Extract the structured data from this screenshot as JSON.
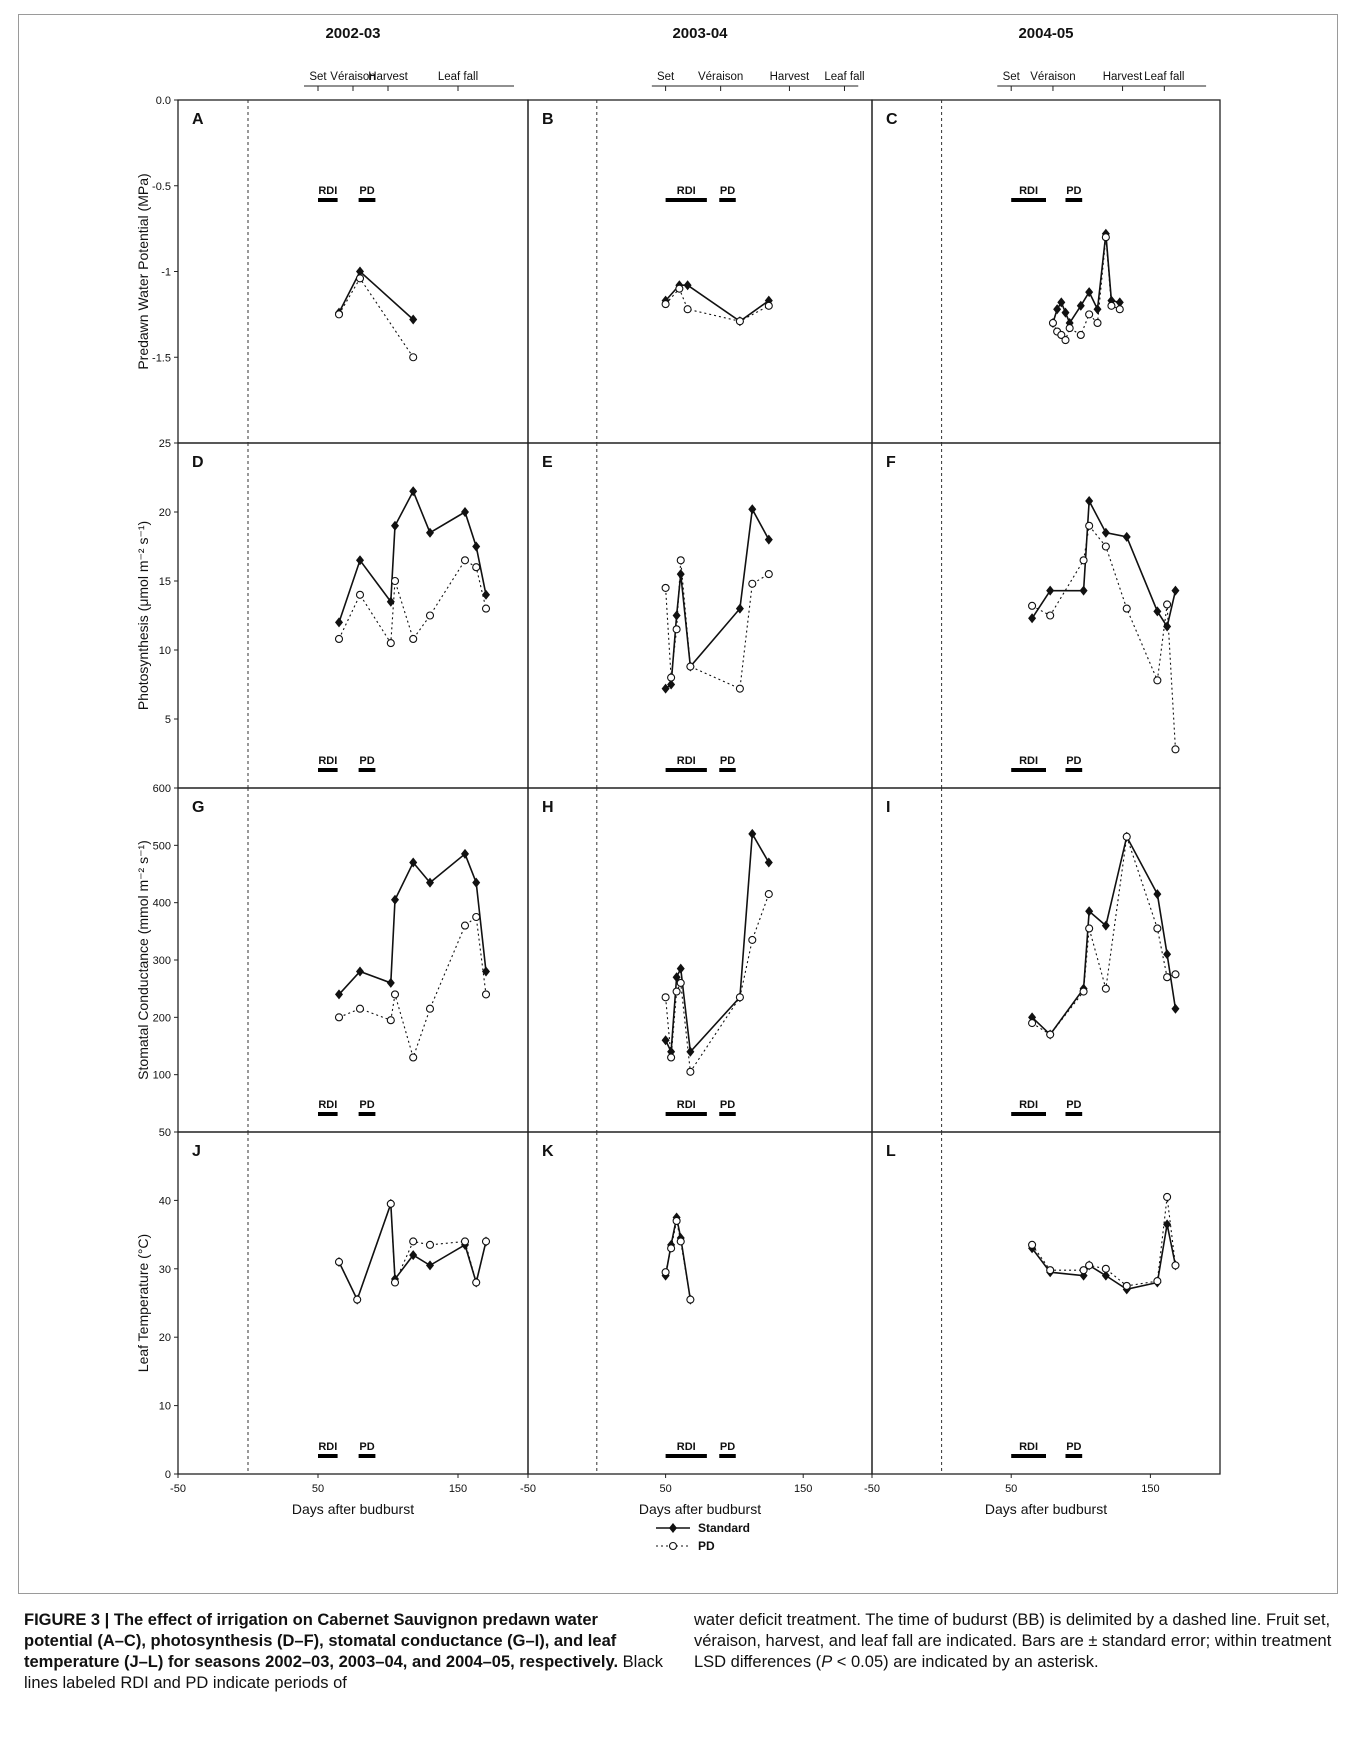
{
  "seasons": [
    "2002-03",
    "2003-04",
    "2004-05"
  ],
  "stages": [
    "Set",
    "Véraison",
    "Harvest",
    "Leaf fall"
  ],
  "panel_letters": [
    "A",
    "B",
    "C",
    "D",
    "E",
    "F",
    "G",
    "H",
    "I",
    "J",
    "K",
    "L"
  ],
  "xlabel": "Days after budburst",
  "x_ticks": [
    "-50",
    "50",
    "150"
  ],
  "row_axes": [
    {
      "ylabel": "Predawn Water Potential (MPa)",
      "ticks": [
        "0.0",
        "-0.5",
        "-1",
        "-1.5"
      ],
      "ylim": [
        -2,
        0
      ]
    },
    {
      "ylabel": "Photosynthesis (μmol m⁻² s⁻¹)",
      "ticks": [
        "25",
        "20",
        "15",
        "10",
        "5"
      ],
      "ylim": [
        0,
        25
      ]
    },
    {
      "ylabel": "Stomatal Conductance (mmol m⁻² s⁻¹)",
      "ticks": [
        "600",
        "500",
        "400",
        "300",
        "200",
        "100"
      ],
      "ylim": [
        0,
        600
      ]
    },
    {
      "ylabel": "Leaf Temperature (°C)",
      "ticks": [
        "50",
        "40",
        "30",
        "20",
        "10",
        "0"
      ],
      "ylim": [
        0,
        50
      ]
    }
  ],
  "period_labels": {
    "rdi": "RDI",
    "pd": "PD"
  },
  "legend": {
    "standard": "Standard",
    "pd": "PD"
  },
  "asterisk": "*",
  "caption": {
    "bold": "FIGURE 3 | The effect of irrigation on Cabernet Sauvignon predawn water potential (A–C), photosynthesis (D–F), stomatal conductance (G–I), and leaf temperature (J–L) for seasons 2002–03, 2003–04, and 2004–05, respectively.",
    "text1": " Black lines labeled RDI and PD indicate periods of",
    "text2": "water deficit treatment. The time of budurst (BB) is delimited by a dashed line. Fruit set, véraison, harvest, and leaf fall are indicated. Bars are ± standard error; within treatment LSD differences (",
    "p_italic": "P",
    "text3": " < 0.05) are indicated by an asterisk."
  },
  "chart_data": [
    {
      "panel": "A",
      "type": "line",
      "season": "2002-03",
      "variable": "Predawn water potential",
      "xlim": [
        -50,
        200
      ],
      "ylim": [
        -2,
        0
      ],
      "series": [
        {
          "name": "Standard",
          "x": [
            65,
            80,
            118
          ],
          "y": [
            -1.24,
            -1.0,
            -1.28
          ]
        },
        {
          "name": "PD",
          "x": [
            65,
            80,
            118
          ],
          "y": [
            -1.25,
            -1.04,
            -1.5
          ]
        }
      ]
    },
    {
      "panel": "B",
      "type": "line",
      "season": "2003-04",
      "variable": "Predawn water potential",
      "xlim": [
        -50,
        200
      ],
      "ylim": [
        -2,
        0
      ],
      "series": [
        {
          "name": "Standard",
          "x": [
            50,
            60,
            66,
            104,
            125
          ],
          "y": [
            -1.17,
            -1.08,
            -1.08,
            -1.29,
            -1.17
          ]
        },
        {
          "name": "PD",
          "x": [
            50,
            60,
            66,
            104,
            125
          ],
          "y": [
            -1.19,
            -1.1,
            -1.22,
            -1.29,
            -1.2
          ]
        }
      ]
    },
    {
      "panel": "C",
      "type": "line",
      "season": "2004-05",
      "variable": "Predawn water potential",
      "xlim": [
        -50,
        200
      ],
      "ylim": [
        -2,
        0
      ],
      "series": [
        {
          "name": "Standard",
          "x": [
            80,
            83,
            86,
            89,
            92,
            100,
            106,
            112,
            118,
            122,
            128
          ],
          "y": [
            -1.3,
            -1.22,
            -1.18,
            -1.24,
            -1.3,
            -1.2,
            -1.12,
            -1.22,
            -0.78,
            -1.17,
            -1.18
          ]
        },
        {
          "name": "PD",
          "x": [
            80,
            83,
            86,
            89,
            92,
            100,
            106,
            112,
            118,
            122,
            128
          ],
          "y": [
            -1.3,
            -1.35,
            -1.37,
            -1.4,
            -1.33,
            -1.37,
            -1.25,
            -1.3,
            -0.8,
            -1.2,
            -1.22
          ]
        }
      ]
    },
    {
      "panel": "D",
      "type": "line",
      "season": "2002-03",
      "variable": "Photosynthesis",
      "xlim": [
        -50,
        200
      ],
      "ylim": [
        0,
        25
      ],
      "series": [
        {
          "name": "Standard",
          "x": [
            65,
            80,
            102,
            105,
            118,
            130,
            155,
            163,
            170
          ],
          "y": [
            12,
            16.5,
            13.5,
            19,
            21.5,
            18.5,
            20,
            17.5,
            14
          ]
        },
        {
          "name": "PD",
          "x": [
            65,
            80,
            102,
            105,
            118,
            130,
            155,
            163,
            170
          ],
          "y": [
            10.8,
            14,
            10.5,
            15,
            10.8,
            12.5,
            16.5,
            16,
            13
          ]
        }
      ]
    },
    {
      "panel": "E",
      "type": "line",
      "season": "2003-04",
      "variable": "Photosynthesis",
      "xlim": [
        -50,
        200
      ],
      "ylim": [
        0,
        25
      ],
      "series": [
        {
          "name": "Standard",
          "x": [
            50,
            54,
            58,
            61,
            68,
            104,
            113,
            125
          ],
          "y": [
            7.2,
            7.5,
            12.5,
            15.5,
            8.8,
            13,
            20.2,
            18
          ]
        },
        {
          "name": "PD",
          "x": [
            50,
            54,
            58,
            61,
            68,
            104,
            113,
            125
          ],
          "y": [
            14.5,
            8,
            11.5,
            16.5,
            8.8,
            7.2,
            14.8,
            15.5
          ]
        }
      ]
    },
    {
      "panel": "F",
      "type": "line",
      "season": "2004-05",
      "variable": "Photosynthesis",
      "xlim": [
        -50,
        200
      ],
      "ylim": [
        0,
        25
      ],
      "series": [
        {
          "name": "Standard",
          "x": [
            65,
            78,
            102,
            106,
            118,
            133,
            155,
            162,
            168
          ],
          "y": [
            12.3,
            14.3,
            14.3,
            20.8,
            18.5,
            18.2,
            12.8,
            11.7,
            14.3
          ]
        },
        {
          "name": "PD",
          "x": [
            65,
            78,
            102,
            106,
            118,
            133,
            155,
            162,
            168
          ],
          "y": [
            13.2,
            12.5,
            16.5,
            19,
            17.5,
            13,
            7.8,
            13.3,
            2.8
          ]
        }
      ]
    },
    {
      "panel": "G",
      "type": "line",
      "season": "2002-03",
      "variable": "Stomatal conductance",
      "xlim": [
        -50,
        200
      ],
      "ylim": [
        0,
        600
      ],
      "series": [
        {
          "name": "Standard",
          "x": [
            65,
            80,
            102,
            105,
            118,
            130,
            155,
            163,
            170
          ],
          "y": [
            240,
            280,
            260,
            405,
            470,
            435,
            485,
            435,
            280
          ]
        },
        {
          "name": "PD",
          "x": [
            65,
            80,
            102,
            105,
            118,
            130,
            155,
            163,
            170
          ],
          "y": [
            200,
            215,
            195,
            240,
            130,
            215,
            360,
            375,
            240
          ]
        }
      ]
    },
    {
      "panel": "H",
      "type": "line",
      "season": "2003-04",
      "variable": "Stomatal conductance",
      "xlim": [
        -50,
        200
      ],
      "ylim": [
        0,
        600
      ],
      "series": [
        {
          "name": "Standard",
          "x": [
            50,
            54,
            58,
            61,
            68,
            104,
            113,
            125
          ],
          "y": [
            160,
            140,
            270,
            285,
            140,
            235,
            520,
            470
          ]
        },
        {
          "name": "PD",
          "x": [
            50,
            54,
            58,
            61,
            68,
            104,
            113,
            125
          ],
          "y": [
            235,
            130,
            245,
            260,
            105,
            235,
            335,
            415
          ]
        }
      ]
    },
    {
      "panel": "I",
      "type": "line",
      "season": "2004-05",
      "variable": "Stomatal conductance",
      "xlim": [
        -50,
        200
      ],
      "ylim": [
        0,
        600
      ],
      "series": [
        {
          "name": "Standard",
          "x": [
            65,
            78,
            102,
            106,
            118,
            133,
            155,
            162,
            168
          ],
          "y": [
            200,
            170,
            250,
            385,
            360,
            515,
            415,
            310,
            215
          ]
        },
        {
          "name": "PD",
          "x": [
            65,
            78,
            102,
            106,
            118,
            133,
            155,
            162,
            168
          ],
          "y": [
            190,
            170,
            245,
            355,
            250,
            515,
            355,
            270,
            275
          ]
        }
      ]
    },
    {
      "panel": "J",
      "type": "line",
      "season": "2002-03",
      "variable": "Leaf temperature",
      "xlim": [
        -50,
        200
      ],
      "ylim": [
        0,
        50
      ],
      "series": [
        {
          "name": "Standard",
          "x": [
            65,
            78,
            102,
            105,
            118,
            130,
            155,
            163,
            170
          ],
          "y": [
            31,
            25.5,
            39.5,
            28.5,
            32,
            30.5,
            33.5,
            28,
            34
          ]
        },
        {
          "name": "PD",
          "x": [
            65,
            78,
            102,
            105,
            118,
            130,
            155,
            163,
            170
          ],
          "y": [
            31,
            25.5,
            39.5,
            28,
            34,
            33.5,
            34,
            28,
            34
          ]
        }
      ]
    },
    {
      "panel": "K",
      "type": "line",
      "season": "2003-04",
      "variable": "Leaf temperature",
      "xlim": [
        -50,
        200
      ],
      "ylim": [
        0,
        50
      ],
      "series": [
        {
          "name": "Standard",
          "x": [
            50,
            54,
            58,
            61,
            68
          ],
          "y": [
            29,
            33.5,
            37.5,
            34.5,
            25.5
          ]
        },
        {
          "name": "PD",
          "x": [
            50,
            54,
            58,
            61,
            68
          ],
          "y": [
            29.5,
            33,
            37,
            34,
            25.5
          ]
        }
      ]
    },
    {
      "panel": "L",
      "type": "line",
      "season": "2004-05",
      "variable": "Leaf temperature",
      "xlim": [
        -50,
        200
      ],
      "ylim": [
        0,
        50
      ],
      "series": [
        {
          "name": "Standard",
          "x": [
            65,
            78,
            102,
            106,
            118,
            133,
            155,
            162,
            168
          ],
          "y": [
            33,
            29.5,
            29,
            30.5,
            29,
            27,
            28,
            36.5,
            30.5
          ]
        },
        {
          "name": "PD",
          "x": [
            65,
            78,
            102,
            106,
            118,
            133,
            155,
            162,
            168
          ],
          "y": [
            33.5,
            29.8,
            29.8,
            30.5,
            30,
            27.5,
            28.2,
            40.5,
            30.5
          ]
        }
      ]
    }
  ]
}
